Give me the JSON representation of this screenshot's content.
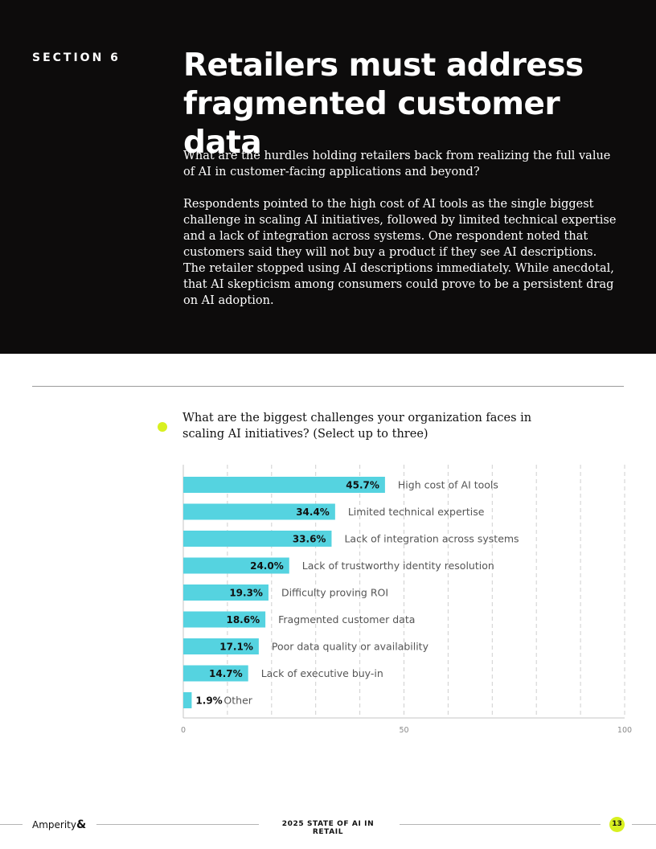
{
  "section_label": "SECTION 6",
  "title": "Retailers must address fragmented customer data",
  "intro": "What are the hurdles holding retailers back from realizing the full value of AI in customer-facing applications and beyond?",
  "body": "Respondents pointed to the high cost of AI tools as the single biggest challenge in scaling AI initiatives, followed by limited technical expertise and a lack of integration across systems. One respondent noted that customers said they will not buy a product if they see AI descriptions. The retailer stopped using AI descriptions immediately. While anecdotal, that AI skepticism among consumers could prove to be a persistent drag on AI adoption.",
  "question": "What are the biggest challenges your organization faces in scaling AI initiatives? (Select up to three)",
  "colors": {
    "hero_bg": "#0d0c0c",
    "bar": "#55d3e0",
    "accent": "#d8f020"
  },
  "chart_data": {
    "type": "bar",
    "orientation": "horizontal",
    "categories": [
      "High cost of AI tools",
      "Limited technical expertise",
      "Lack of integration across systems",
      "Lack of trustworthy identity resolution",
      "Difficulty proving ROI",
      "Fragmented customer data",
      "Poor data quality or availability",
      "Lack of executive buy-in",
      "Other"
    ],
    "values": [
      45.7,
      34.4,
      33.6,
      24.0,
      19.3,
      18.6,
      17.1,
      14.7,
      1.9
    ],
    "value_labels": [
      "45.7%",
      "34.4%",
      "33.6%",
      "24.0%",
      "19.3%",
      "18.6%",
      "17.1%",
      "14.7%",
      "1.9%"
    ],
    "xlim": [
      0,
      100
    ],
    "x_ticks": [
      0,
      50,
      100
    ],
    "x_tick_labels": [
      "0",
      "50",
      "100"
    ],
    "grid": "vertical dashed"
  },
  "footer": {
    "brand": "Amperity",
    "brand_mark": "&",
    "report_title": "2025 STATE OF AI IN RETAIL",
    "page_number": "13"
  }
}
